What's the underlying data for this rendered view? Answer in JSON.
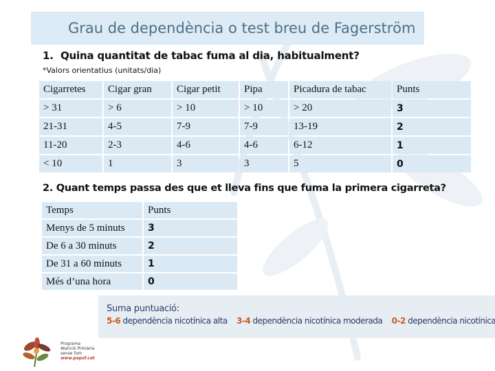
{
  "title": "Grau de dependència o test breu de Fagerström",
  "question1": {
    "number": "1.",
    "text": "Quina quantitat de tabac fuma al dia, habitualment?",
    "note": "*Valors orientatius (unitats/dia)"
  },
  "table1": {
    "headers": [
      "Cigarretes",
      "Cigar gran",
      "Cigar petit",
      "Pipa",
      "Picadura de tabac",
      "Punts"
    ],
    "rows": [
      [
        "> 31",
        "> 6",
        "> 10",
        "> 10",
        "> 20",
        "3"
      ],
      [
        "21-31",
        "4-5",
        "7-9",
        "7-9",
        "13-19",
        "2"
      ],
      [
        "11-20",
        "2-3",
        "4-6",
        "4-6",
        "6-12",
        "1"
      ],
      [
        "< 10",
        "1",
        "3",
        "3",
        "5",
        "0"
      ]
    ]
  },
  "question2": {
    "text": "2. Quant temps passa des que et lleva fins que fuma la primera cigarreta?"
  },
  "table2": {
    "headers": [
      "Temps",
      "Punts"
    ],
    "rows": [
      [
        "Menys de 5 minuts",
        "3"
      ],
      [
        "De 6 a 30 minuts",
        "2"
      ],
      [
        "De 31 a 60 minuts",
        "1"
      ],
      [
        "Més d’una hora",
        "0"
      ]
    ]
  },
  "summary": {
    "title": "Suma puntuació:",
    "items": [
      {
        "score": "5-6",
        "label": "dependència nicotínica alta"
      },
      {
        "score": "3-4",
        "label": "dependència nicotínica moderada"
      },
      {
        "score": "0-2",
        "label": "dependència nicotínica baixa"
      }
    ]
  },
  "logo": {
    "line1": "Programa",
    "line2": "Atenció Primària",
    "line3": "sense fum",
    "line4": "www.papsf.cat"
  }
}
